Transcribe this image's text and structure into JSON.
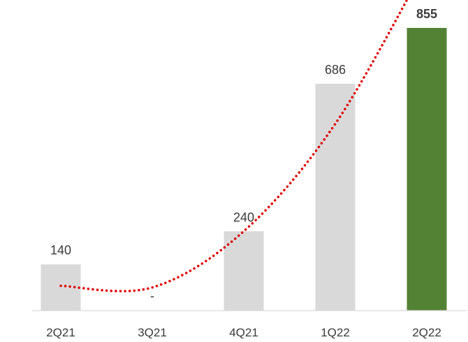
{
  "chart_data": {
    "type": "bar",
    "categories": [
      "2Q21",
      "3Q21",
      "4Q21",
      "1Q22",
      "2Q22"
    ],
    "values": [
      140,
      0,
      240,
      686,
      855
    ],
    "value_labels": [
      "140",
      "-",
      "240",
      "686",
      "855"
    ],
    "highlight_index": 4,
    "ylim": [
      0,
      900
    ],
    "grid": false,
    "trendline": {
      "type": "polynomial",
      "style": "dotted",
      "values": [
        75,
        70,
        240,
        565,
        1050
      ]
    },
    "colors": {
      "bar": "#d9d9d9",
      "highlight_bar": "#548235",
      "trendline": "#e00000",
      "axis": "#d9d9d9",
      "text": "#3a3a3a"
    }
  }
}
